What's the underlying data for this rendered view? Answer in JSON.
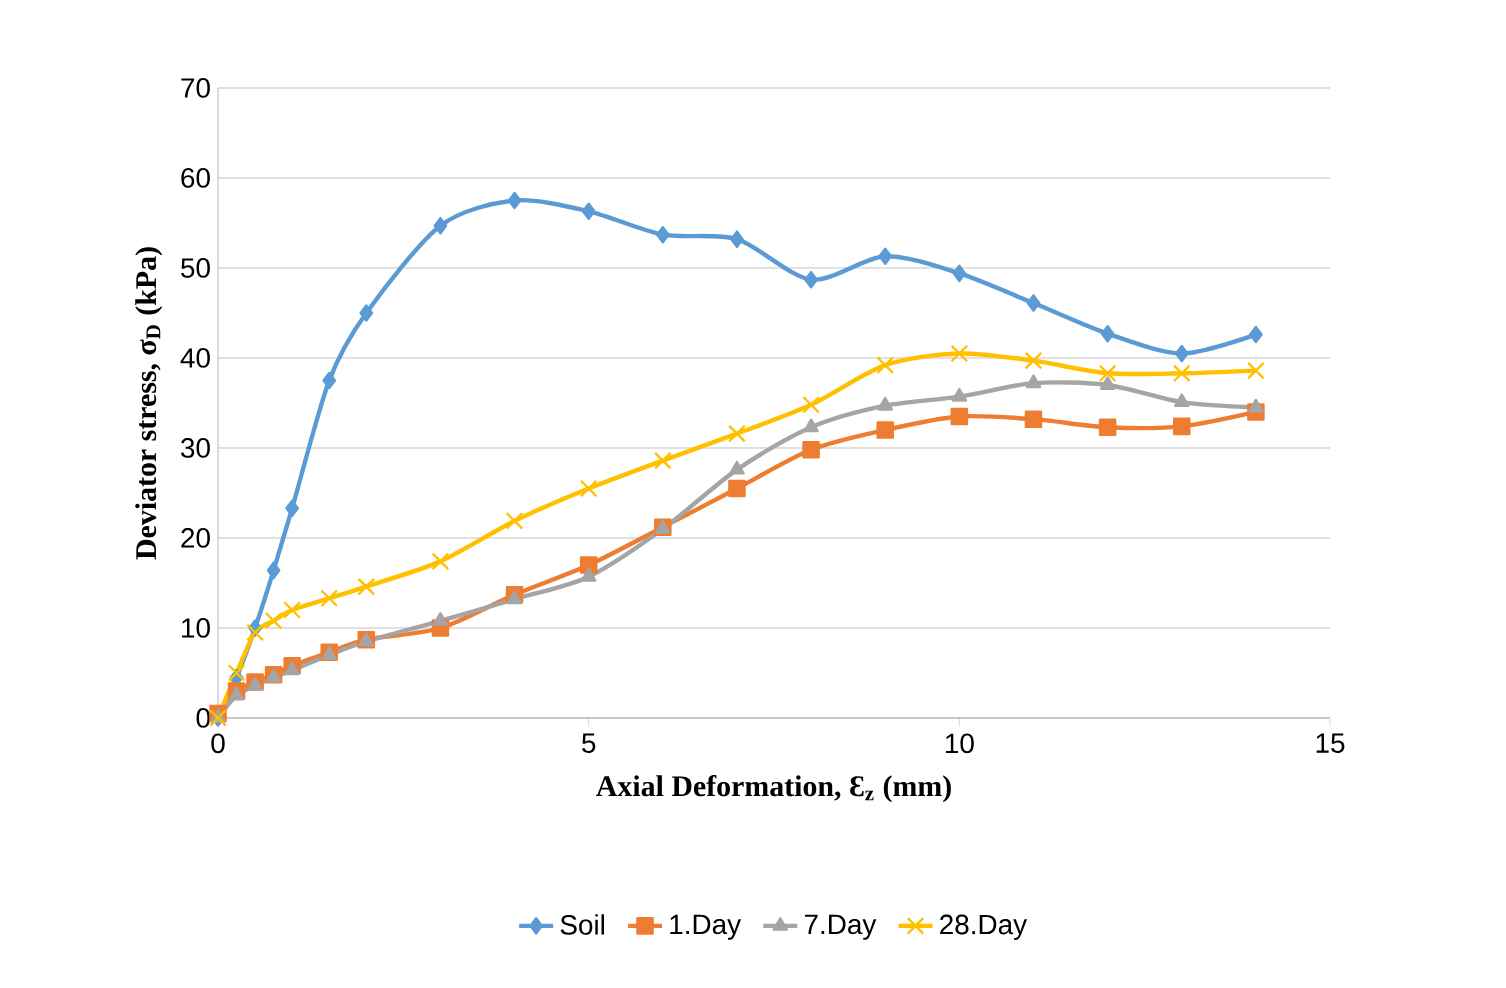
{
  "chart_data": {
    "type": "line",
    "xlabel": "Axial Deformation, Ɛ$_{z}$ (mm)",
    "ylabel": "Deviator stress, σ$_{D}$ (kPa)",
    "x": [
      0,
      0.25,
      0.5,
      0.75,
      1,
      1.5,
      2,
      3,
      4,
      5,
      6,
      7,
      8,
      9,
      10,
      11,
      12,
      13,
      14
    ],
    "xlim": [
      0,
      15
    ],
    "xticks": [
      0,
      5,
      10,
      15
    ],
    "ylim": [
      0,
      70
    ],
    "yticks": [
      0,
      10,
      20,
      30,
      40,
      50,
      60,
      70
    ],
    "grid": "y",
    "legend": "bottom",
    "line_style": "solid",
    "series": [
      {
        "name": "Soil",
        "color": "#5b9bd5",
        "marker": "diamond",
        "values": [
          0,
          4.5,
          10,
          16.4,
          23.3,
          37.5,
          45,
          54.7,
          57.5,
          56.3,
          53.7,
          53.2,
          48.7,
          51.3,
          49.4,
          46.1,
          42.7,
          40.5,
          42.6
        ]
      },
      {
        "name": "1.Day",
        "color": "#ed7d31",
        "marker": "square",
        "values": [
          0.5,
          3,
          4,
          4.8,
          5.8,
          7.3,
          8.7,
          10,
          13.7,
          17,
          21.2,
          25.5,
          29.8,
          32,
          33.5,
          33.2,
          32.3,
          32.4,
          34
        ]
      },
      {
        "name": "7.Day",
        "color": "#a5a5a5",
        "marker": "triangle",
        "values": [
          0,
          2.5,
          3.6,
          4.5,
          5.3,
          7,
          8.5,
          10.8,
          13.2,
          15.7,
          21,
          27.6,
          32.3,
          34.7,
          35.7,
          37.2,
          37,
          35.1,
          34.5
        ]
      },
      {
        "name": "28.Day",
        "color": "#ffc000",
        "marker": "cross",
        "values": [
          0,
          5,
          9.5,
          10.8,
          12,
          13.3,
          14.6,
          17.4,
          21.9,
          25.5,
          28.6,
          31.6,
          34.8,
          39.2,
          40.5,
          39.7,
          38.3,
          38.3,
          38.6
        ]
      }
    ]
  }
}
